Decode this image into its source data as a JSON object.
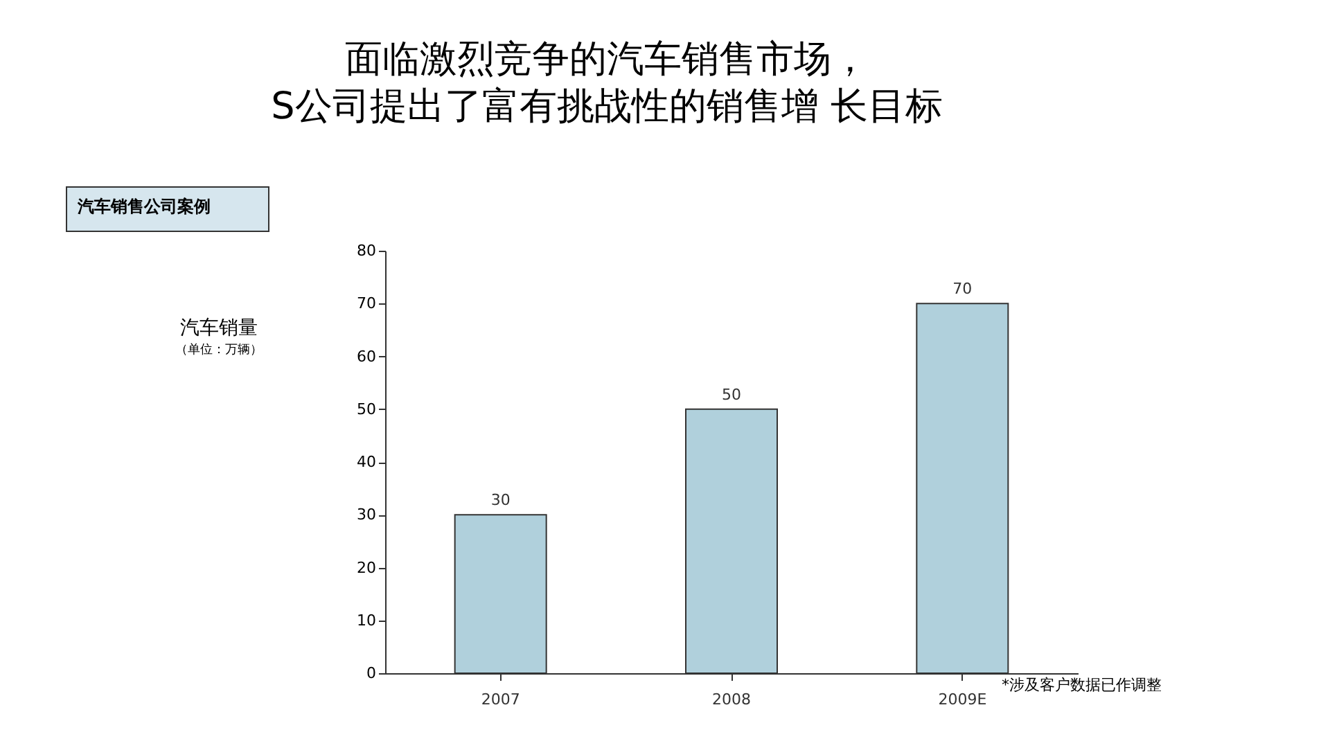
{
  "chart_data": {
    "type": "bar",
    "title": "面临激烈竞争的汽车销售市场，\nS公司提出了富有挑战性的销售增 长目标",
    "categories": [
      "2007",
      "2008",
      "2009E"
    ],
    "values": [
      30,
      50,
      70
    ],
    "color": "#b0d0dc",
    "ylim": [
      0,
      80
    ],
    "yticks": [
      0,
      10,
      20,
      30,
      40,
      50,
      60,
      70,
      80
    ],
    "data_labels": true,
    "grid": false,
    "annotations": [
      "汽车销售公司案例",
      "*涉及客户数据已作调整",
      "汽车销量",
      "（单位：万辆）"
    ]
  }
}
